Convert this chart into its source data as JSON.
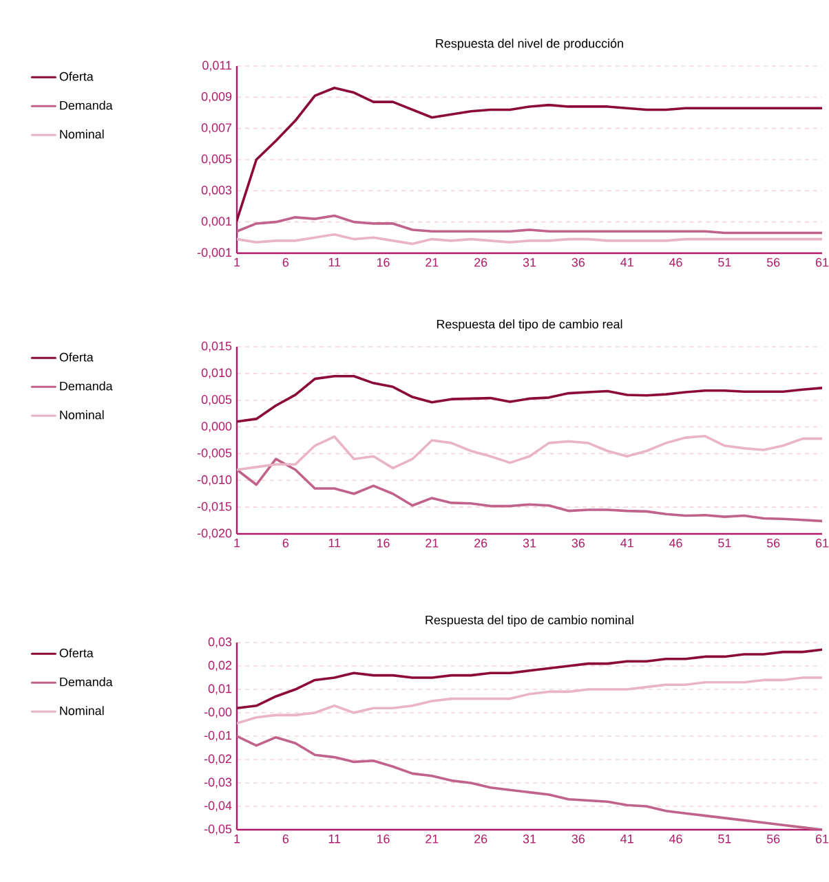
{
  "chart_data": [
    {
      "type": "line",
      "title": "Respuesta del nivel de producción",
      "x": [
        1,
        3,
        5,
        7,
        9,
        11,
        13,
        15,
        17,
        19,
        21,
        23,
        25,
        27,
        29,
        31,
        33,
        35,
        37,
        39,
        41,
        43,
        45,
        47,
        49,
        51,
        53,
        55,
        57,
        59,
        61
      ],
      "series": [
        {
          "name": "Oferta",
          "color": "#8b0a3a",
          "values": [
            0.0011,
            0.005,
            0.0062,
            0.0075,
            0.0091,
            0.0096,
            0.0093,
            0.0087,
            0.0087,
            0.0082,
            0.0077,
            0.0079,
            0.0081,
            0.0082,
            0.0082,
            0.0084,
            0.0085,
            0.0084,
            0.0084,
            0.0084,
            0.0083,
            0.0082,
            0.0082,
            0.0083,
            0.0083,
            0.0083,
            0.0083,
            0.0083,
            0.0083,
            0.0083,
            0.0083
          ]
        },
        {
          "name": "Demanda",
          "color": "#c0628a",
          "values": [
            0.0004,
            0.0009,
            0.001,
            0.0013,
            0.0012,
            0.0014,
            0.001,
            0.0009,
            0.0009,
            0.0005,
            0.0004,
            0.0004,
            0.0004,
            0.0004,
            0.0004,
            0.0005,
            0.0004,
            0.0004,
            0.0004,
            0.0004,
            0.0004,
            0.0004,
            0.0004,
            0.0004,
            0.0004,
            0.0003,
            0.0003,
            0.0003,
            0.0003,
            0.0003,
            0.0003
          ]
        },
        {
          "name": "Nominal",
          "color": "#e8b4c6",
          "values": [
            -0.0001,
            -0.0003,
            -0.0002,
            -0.0002,
            0.0,
            0.0002,
            -0.0001,
            0.0,
            -0.0002,
            -0.0004,
            -0.0001,
            -0.0002,
            -0.0001,
            -0.0002,
            -0.0003,
            -0.0002,
            -0.0002,
            -0.0001,
            -0.0001,
            -0.0002,
            -0.0002,
            -0.0002,
            -0.0002,
            -0.0001,
            -0.0001,
            -0.0001,
            -0.0001,
            -0.0001,
            -0.0001,
            -0.0001,
            -0.0001
          ]
        }
      ],
      "xlim": [
        1,
        61
      ],
      "xticks": [
        1,
        6,
        11,
        16,
        21,
        26,
        31,
        36,
        41,
        46,
        51,
        56,
        61
      ],
      "ylim": [
        -0.001,
        0.011
      ],
      "yticks": [
        {
          "value": -0.001,
          "label": "-0,001"
        },
        {
          "value": 0.001,
          "label": "0,001"
        },
        {
          "value": 0.003,
          "label": "0,003"
        },
        {
          "value": 0.005,
          "label": "0,005"
        },
        {
          "value": 0.007,
          "label": "0,007"
        },
        {
          "value": 0.009,
          "label": "0,009"
        },
        {
          "value": 0.011,
          "label": "0,011"
        }
      ],
      "grid": "y",
      "legend": "left"
    },
    {
      "type": "line",
      "title": "Respuesta del tipo de cambio real",
      "x": [
        1,
        3,
        5,
        7,
        9,
        11,
        13,
        15,
        17,
        19,
        21,
        23,
        25,
        27,
        29,
        31,
        33,
        35,
        37,
        39,
        41,
        43,
        45,
        47,
        49,
        51,
        53,
        55,
        57,
        59,
        61
      ],
      "series": [
        {
          "name": "Oferta",
          "color": "#8b0a3a",
          "values": [
            0.001,
            0.0015,
            0.004,
            0.006,
            0.009,
            0.0095,
            0.0095,
            0.0082,
            0.0075,
            0.0056,
            0.0046,
            0.0052,
            0.0053,
            0.0054,
            0.0047,
            0.0053,
            0.0055,
            0.0063,
            0.0065,
            0.0067,
            0.006,
            0.0059,
            0.0061,
            0.0065,
            0.0068,
            0.0068,
            0.0066,
            0.0066,
            0.0066,
            0.007,
            0.0073
          ]
        },
        {
          "name": "Demanda",
          "color": "#c0628a",
          "values": [
            -0.008,
            -0.0108,
            -0.006,
            -0.008,
            -0.0115,
            -0.0115,
            -0.0125,
            -0.011,
            -0.0125,
            -0.0147,
            -0.0133,
            -0.0142,
            -0.0143,
            -0.0148,
            -0.0148,
            -0.0145,
            -0.0147,
            -0.0157,
            -0.0155,
            -0.0155,
            -0.0157,
            -0.0158,
            -0.0163,
            -0.0166,
            -0.0165,
            -0.0168,
            -0.0166,
            -0.0171,
            -0.0172,
            -0.0174,
            -0.0176
          ]
        },
        {
          "name": "Nominal",
          "color": "#e8b4c6",
          "values": [
            -0.008,
            -0.0075,
            -0.007,
            -0.007,
            -0.0035,
            -0.0018,
            -0.006,
            -0.0055,
            -0.0077,
            -0.006,
            -0.0025,
            -0.003,
            -0.0045,
            -0.0055,
            -0.0067,
            -0.0055,
            -0.003,
            -0.0027,
            -0.003,
            -0.0045,
            -0.0055,
            -0.0045,
            -0.003,
            -0.002,
            -0.0017,
            -0.0035,
            -0.004,
            -0.0043,
            -0.0035,
            -0.0022,
            -0.0022
          ]
        }
      ],
      "xlim": [
        1,
        61
      ],
      "xticks": [
        1,
        6,
        11,
        16,
        21,
        26,
        31,
        36,
        41,
        46,
        51,
        56,
        61
      ],
      "ylim": [
        -0.02,
        0.015
      ],
      "yticks": [
        {
          "value": -0.02,
          "label": "-0,020"
        },
        {
          "value": -0.015,
          "label": "-0,015"
        },
        {
          "value": -0.01,
          "label": "-0,010"
        },
        {
          "value": -0.005,
          "label": "-0,005"
        },
        {
          "value": 0,
          "label": "0,000"
        },
        {
          "value": 0.005,
          "label": "0,005"
        },
        {
          "value": 0.01,
          "label": "0,010"
        },
        {
          "value": 0.015,
          "label": "0,015"
        }
      ],
      "grid": "y",
      "legend": "left"
    },
    {
      "type": "line",
      "title": "Respuesta del tipo de cambio nominal",
      "x": [
        1,
        3,
        5,
        7,
        9,
        11,
        13,
        15,
        17,
        19,
        21,
        23,
        25,
        27,
        29,
        31,
        33,
        35,
        37,
        39,
        41,
        43,
        45,
        47,
        49,
        51,
        53,
        55,
        57,
        59,
        61
      ],
      "series": [
        {
          "name": "Oferta",
          "color": "#8b0a3a",
          "values": [
            0.002,
            0.003,
            0.007,
            0.01,
            0.014,
            0.015,
            0.017,
            0.016,
            0.016,
            0.015,
            0.015,
            0.016,
            0.016,
            0.017,
            0.017,
            0.018,
            0.019,
            0.02,
            0.021,
            0.021,
            0.022,
            0.022,
            0.023,
            0.023,
            0.024,
            0.024,
            0.025,
            0.025,
            0.026,
            0.026,
            0.027
          ]
        },
        {
          "name": "Demanda",
          "color": "#c0628a",
          "values": [
            -0.01,
            -0.014,
            -0.0105,
            -0.013,
            -0.018,
            -0.019,
            -0.021,
            -0.0205,
            -0.023,
            -0.026,
            -0.027,
            -0.029,
            -0.03,
            -0.032,
            -0.033,
            -0.034,
            -0.035,
            -0.037,
            -0.0375,
            -0.038,
            -0.0395,
            -0.04,
            -0.042,
            -0.043,
            -0.044,
            -0.045,
            -0.046,
            -0.047,
            -0.048,
            -0.049,
            -0.05
          ]
        },
        {
          "name": "Nominal",
          "color": "#e8b4c6",
          "values": [
            -0.0045,
            -0.002,
            -0.001,
            -0.001,
            0.0,
            0.003,
            0.0,
            0.002,
            0.002,
            0.003,
            0.005,
            0.006,
            0.006,
            0.006,
            0.006,
            0.008,
            0.009,
            0.009,
            0.01,
            0.01,
            0.01,
            0.011,
            0.012,
            0.012,
            0.013,
            0.013,
            0.013,
            0.014,
            0.014,
            0.015,
            0.015
          ]
        }
      ],
      "xlim": [
        1,
        61
      ],
      "xticks": [
        1,
        6,
        11,
        16,
        21,
        26,
        31,
        36,
        41,
        46,
        51,
        56,
        61
      ],
      "ylim": [
        -0.05,
        0.03
      ],
      "yticks": [
        {
          "value": -0.05,
          "label": "-0,05"
        },
        {
          "value": -0.04,
          "label": "-0,04"
        },
        {
          "value": -0.03,
          "label": "-0,03"
        },
        {
          "value": -0.02,
          "label": "-0,02"
        },
        {
          "value": -0.01,
          "label": "-0,01"
        },
        {
          "value": 0,
          "label": "-0,00"
        },
        {
          "value": 0.01,
          "label": "0,01"
        },
        {
          "value": 0.02,
          "label": "0,02"
        },
        {
          "value": 0.03,
          "label": "0,03"
        }
      ],
      "grid": "y",
      "legend": "left"
    }
  ]
}
